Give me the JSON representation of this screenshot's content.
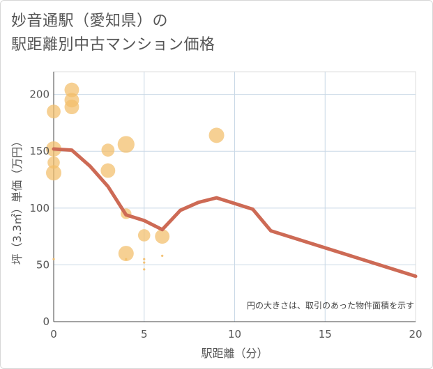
{
  "title_line1": "妙音通駅（愛知県）の",
  "title_line2": "駅距離別中古マンション価格",
  "chart_data": {
    "type": "scatter",
    "xlabel": "駅距離（分）",
    "ylabel": "坪（3.3㎡）単価（万円）",
    "note": "円の大きさは、取引のあった物件面積を示す",
    "xlim": [
      0,
      20
    ],
    "ylim": [
      0,
      220
    ],
    "x_ticks": [
      "0",
      "5",
      "10",
      "15",
      "20"
    ],
    "y_ticks": [
      "0",
      "50",
      "100",
      "150",
      "200"
    ],
    "grid": true,
    "colors": {
      "bubble": "#f3be6a",
      "line": "#cd6a55"
    },
    "bubbles": [
      {
        "x": 0,
        "y": 185,
        "size": 18
      },
      {
        "x": 0,
        "y": 152,
        "size": 20
      },
      {
        "x": 0,
        "y": 140,
        "size": 16
      },
      {
        "x": 0,
        "y": 131,
        "size": 20
      },
      {
        "x": 0,
        "y": 55,
        "size": 3
      },
      {
        "x": 1,
        "y": 204,
        "size": 19
      },
      {
        "x": 1,
        "y": 195,
        "size": 19
      },
      {
        "x": 1,
        "y": 189,
        "size": 19
      },
      {
        "x": 3,
        "y": 151,
        "size": 17
      },
      {
        "x": 3,
        "y": 133,
        "size": 19
      },
      {
        "x": 4,
        "y": 156,
        "size": 22
      },
      {
        "x": 4,
        "y": 95,
        "size": 14
      },
      {
        "x": 4,
        "y": 60,
        "size": 20
      },
      {
        "x": 4,
        "y": 55,
        "size": 3
      },
      {
        "x": 5,
        "y": 76,
        "size": 16
      },
      {
        "x": 5,
        "y": 55,
        "size": 3
      },
      {
        "x": 5,
        "y": 52,
        "size": 3
      },
      {
        "x": 5,
        "y": 46,
        "size": 3
      },
      {
        "x": 6,
        "y": 75,
        "size": 19
      },
      {
        "x": 6,
        "y": 58,
        "size": 3
      },
      {
        "x": 9,
        "y": 164,
        "size": 20
      }
    ],
    "trend": {
      "x": [
        0,
        1,
        2,
        3,
        4,
        5,
        6,
        7,
        8,
        9,
        10,
        11,
        12,
        20
      ],
      "y": [
        152,
        151,
        137,
        119,
        94,
        89,
        81,
        98,
        105,
        109,
        104,
        99,
        80,
        40
      ]
    }
  }
}
